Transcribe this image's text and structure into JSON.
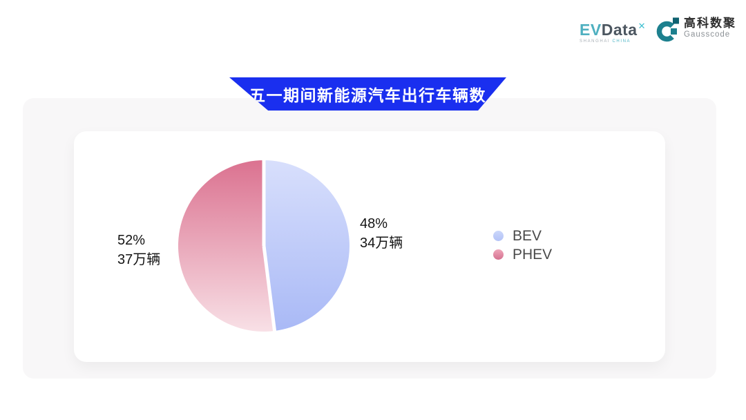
{
  "header": {
    "evdata_logo": {
      "ev": "EV",
      "data": "Data",
      "sup": "✕",
      "sub_left": "SHANGHAI",
      "sub_right": "CHINA"
    },
    "gausscode_logo": {
      "cn": "高科数聚",
      "en": "Gausscode"
    }
  },
  "banner": {
    "title": "五一期间新能源汽车出行车辆数",
    "color": "#1A2FEF"
  },
  "chart_data": {
    "type": "pie",
    "title": "五一期间新能源汽车出行车辆数",
    "start_angle_deg": 0,
    "direction": "clockwise",
    "legend_position": "right",
    "gap_between_slices": true,
    "unit": "万辆",
    "slices": [
      {
        "label": "BEV",
        "percent": 48,
        "value": 34,
        "percent_label": "48%",
        "value_label": "34万辆",
        "color_top": "#D8DFFC",
        "color_bottom": "#A9B9F6",
        "dot_color_top": "#CBD7FA",
        "dot_color_bottom": "#B3C2F7"
      },
      {
        "label": "PHEV",
        "percent": 52,
        "value": 37,
        "percent_label": "52%",
        "value_label": "37万辆",
        "color_top": "#DB7290",
        "color_bottom": "#F8E0E6",
        "dot_color_top": "#EFA6BA",
        "dot_color_bottom": "#D5718F"
      }
    ]
  }
}
